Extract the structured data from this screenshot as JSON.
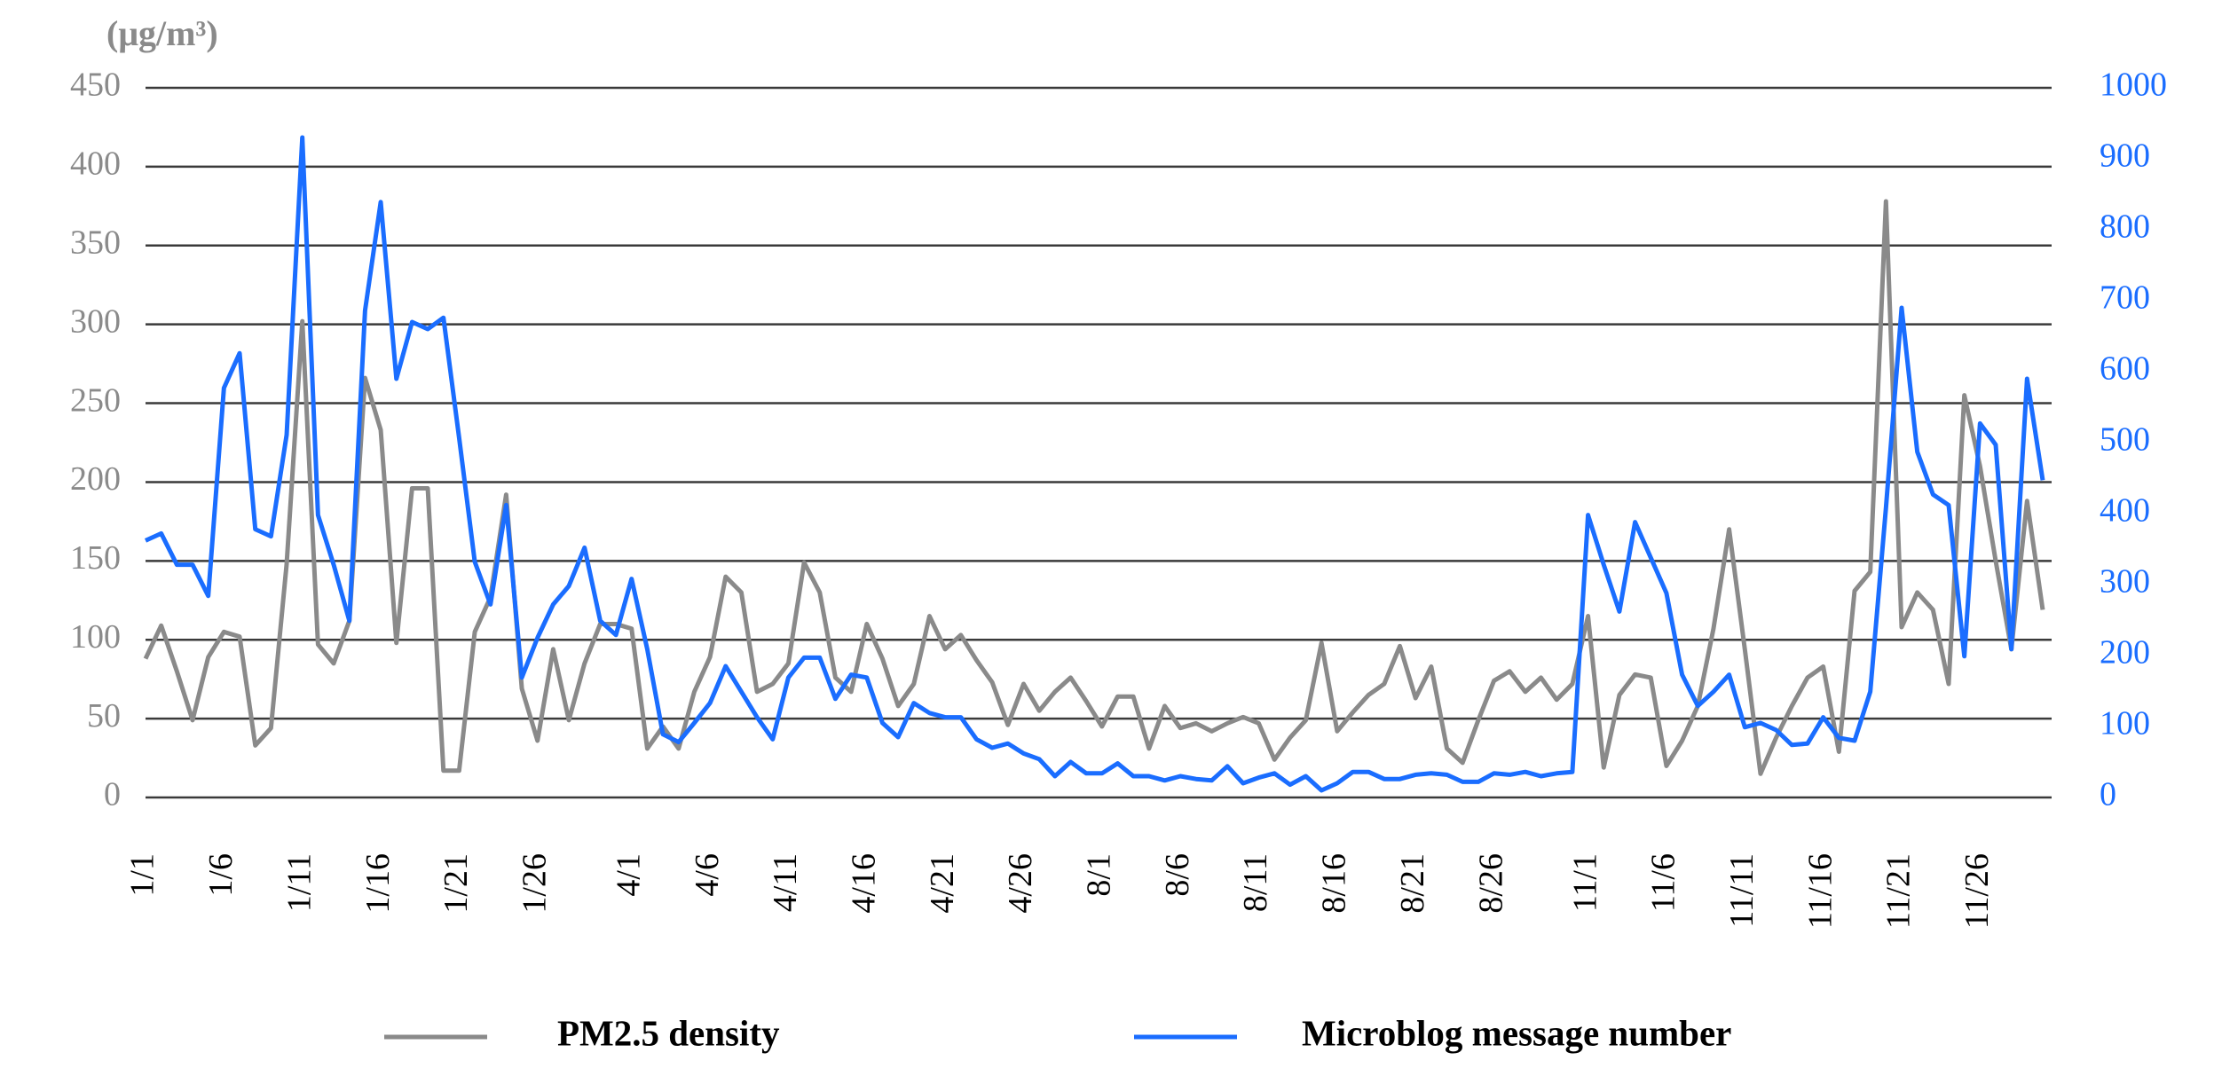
{
  "chart_data": {
    "type": "line",
    "ylabel": "(μg/m³)",
    "categories": [
      "1/1",
      null,
      null,
      null,
      null,
      "1/6",
      null,
      null,
      null,
      null,
      "1/11",
      null,
      null,
      null,
      null,
      "1/16",
      null,
      null,
      null,
      null,
      "1/21",
      null,
      null,
      null,
      null,
      "1/26",
      null,
      null,
      null,
      null,
      null,
      "4/1",
      null,
      null,
      null,
      null,
      "4/6",
      null,
      null,
      null,
      null,
      "4/11",
      null,
      null,
      null,
      null,
      "4/16",
      null,
      null,
      null,
      null,
      "4/21",
      null,
      null,
      null,
      null,
      "4/26",
      null,
      null,
      null,
      null,
      "8/1",
      null,
      null,
      null,
      null,
      "8/6",
      null,
      null,
      null,
      null,
      "8/11",
      null,
      null,
      null,
      null,
      "8/16",
      null,
      null,
      null,
      null,
      "8/21",
      null,
      null,
      null,
      null,
      "8/26",
      null,
      null,
      null,
      null,
      null,
      "11/1",
      null,
      null,
      null,
      null,
      "11/6",
      null,
      null,
      null,
      null,
      "11/11",
      null,
      null,
      null,
      null,
      "11/16",
      null,
      null,
      null,
      null,
      "11/21",
      null,
      null,
      null,
      null,
      "11/26",
      null,
      null,
      null,
      null
    ],
    "series": [
      {
        "name": "PM2.5 density",
        "color": "#8a8a8a",
        "axis": "y",
        "values": [
          88,
          109,
          80,
          49,
          89,
          105,
          102,
          33,
          44,
          148,
          302,
          97,
          85,
          112,
          266,
          233,
          98,
          196,
          196,
          17,
          17,
          105,
          127,
          192,
          69,
          36,
          94,
          49,
          85,
          110,
          110,
          107,
          31,
          45,
          31,
          67,
          89,
          140,
          130,
          67,
          72,
          85,
          149,
          130,
          76,
          67,
          110,
          88,
          58,
          72,
          115,
          94,
          103,
          87,
          73,
          46,
          72,
          55,
          67,
          76,
          61,
          45,
          64,
          64,
          31,
          58,
          44,
          47,
          42,
          47,
          51,
          47,
          24,
          38,
          49,
          98,
          42,
          54,
          65,
          72,
          96,
          63,
          83,
          31,
          22,
          49,
          74,
          80,
          67,
          76,
          62,
          72,
          115,
          19,
          65,
          78,
          76,
          20,
          36,
          58,
          107,
          170,
          94,
          15,
          38,
          58,
          76,
          83,
          29,
          131,
          143,
          378,
          108,
          130,
          119,
          72,
          255,
          210,
          150,
          94,
          188,
          119
        ]
      },
      {
        "name": "Microblog message number",
        "color": "#1a6dff",
        "axis": "y2",
        "values": [
          362,
          372,
          328,
          328,
          284,
          577,
          626,
          378,
          368,
          511,
          930,
          398,
          328,
          249,
          686,
          839,
          590,
          670,
          660,
          676,
          507,
          332,
          272,
          412,
          169,
          225,
          272,
          298,
          352,
          249,
          229,
          308,
          209,
          89,
          78,
          105,
          133,
          185,
          149,
          113,
          82,
          169,
          197,
          197,
          139,
          173,
          169,
          105,
          85,
          133,
          119,
          113,
          113,
          82,
          70,
          76,
          62,
          54,
          30,
          50,
          34,
          34,
          48,
          30,
          30,
          24,
          30,
          26,
          24,
          44,
          20,
          28,
          34,
          18,
          30,
          10,
          20,
          36,
          36,
          26,
          26,
          32,
          34,
          32,
          22,
          22,
          34,
          32,
          36,
          30,
          34,
          36,
          398,
          328,
          262,
          388,
          338,
          288,
          173,
          129,
          149,
          173,
          99,
          105,
          95,
          74,
          76,
          113,
          84,
          80,
          149,
          408,
          690,
          487,
          427,
          412,
          199,
          527,
          497,
          209,
          590,
          447
        ]
      }
    ],
    "ylim": [
      0,
      450
    ],
    "yticks": [
      0,
      50,
      100,
      150,
      200,
      250,
      300,
      350,
      400,
      450
    ],
    "y2lim": [
      0,
      1000
    ],
    "y2ticks": [
      0,
      100,
      200,
      300,
      400,
      500,
      600,
      700,
      800,
      900,
      1000
    ],
    "grid": true,
    "legend": "bottom"
  }
}
